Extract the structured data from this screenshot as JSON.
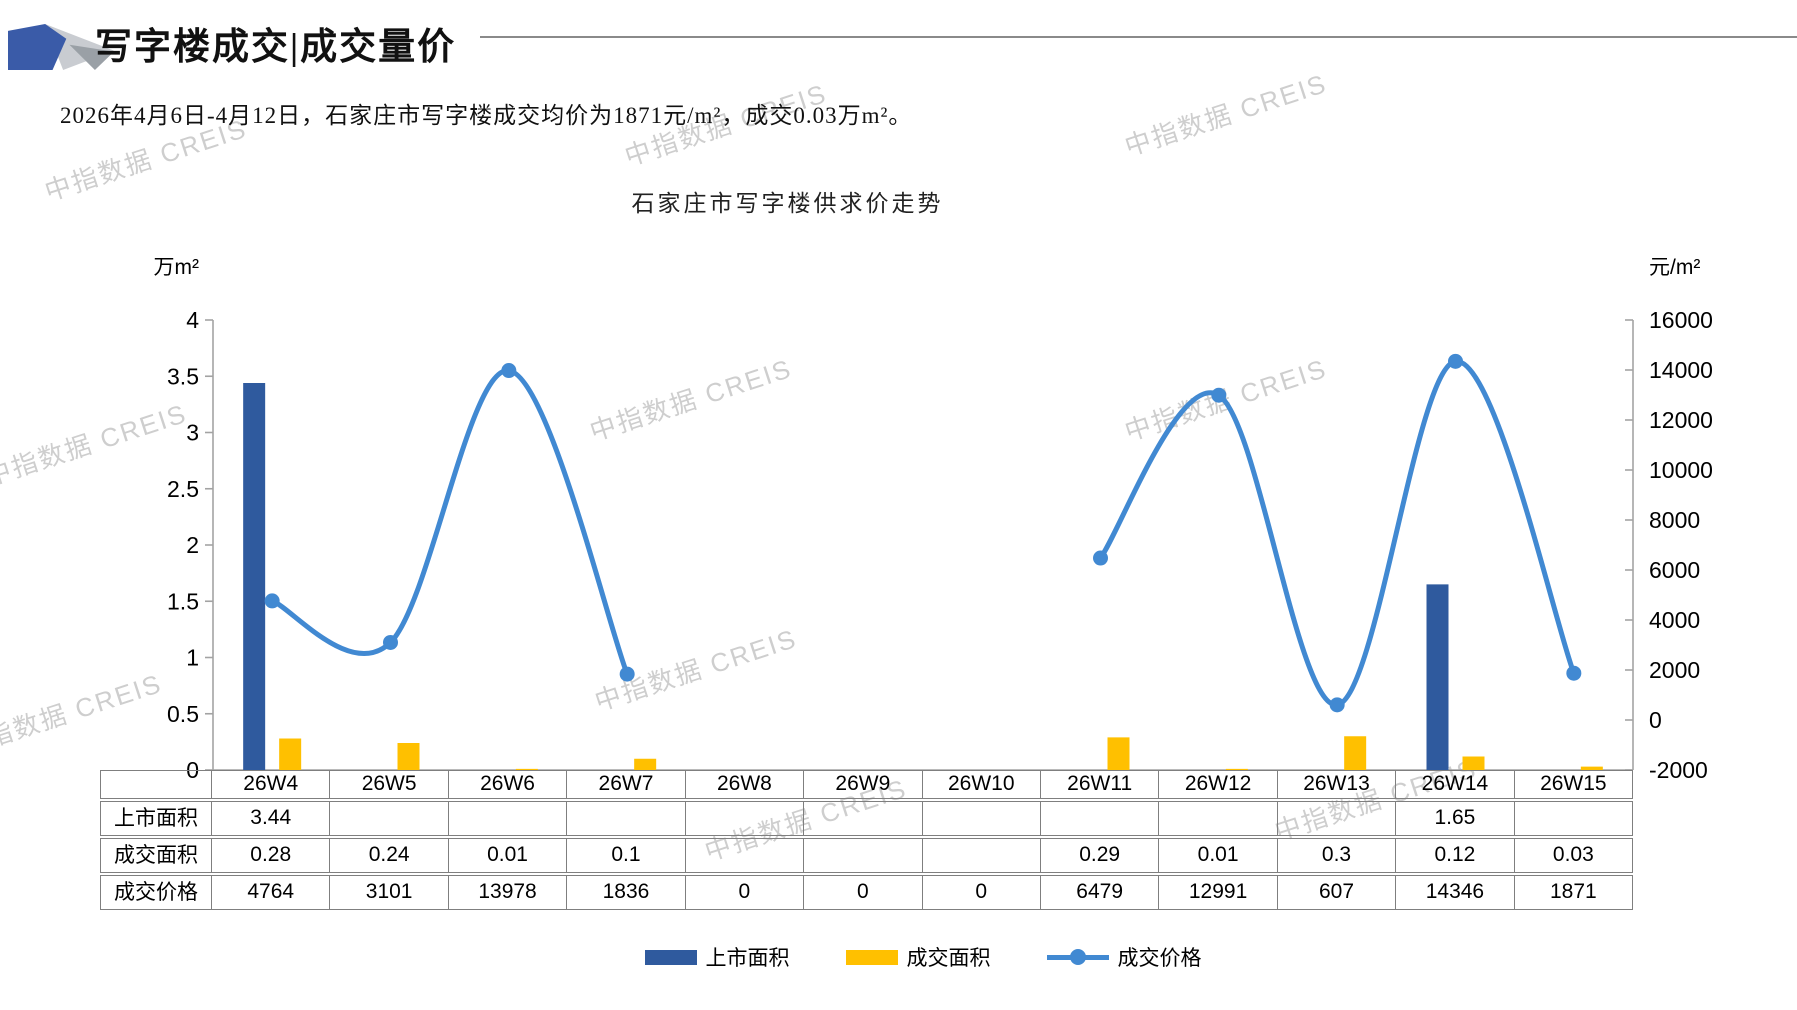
{
  "header": {
    "title": "写字楼成交|成交量价"
  },
  "intro": {
    "text": "2026年4月6日-4月12日，石家庄市写字楼成交均价为1871元/m²，成交0.03万m²。"
  },
  "watermark": {
    "text": "中指数据 CREIS"
  },
  "chart_data": {
    "type": "bar",
    "subtype": "combo-bar-line-dual-axis",
    "title": "石家庄市写字楼供求价走势",
    "categories": [
      "26W4",
      "26W5",
      "26W6",
      "26W7",
      "26W8",
      "26W9",
      "26W10",
      "26W11",
      "26W12",
      "26W13",
      "26W14",
      "26W15"
    ],
    "left_axis": {
      "label": "万m²",
      "min": 0,
      "max": 4,
      "step": 0.5,
      "ticks": [
        "4",
        "3.5",
        "3",
        "2.5",
        "2",
        "1.5",
        "1",
        "0.5",
        "0"
      ]
    },
    "right_axis": {
      "label": "元/m²",
      "min": -2000,
      "max": 16000,
      "step": 2000,
      "ticks": [
        "16000",
        "14000",
        "12000",
        "10000",
        "8000",
        "6000",
        "4000",
        "2000",
        "0",
        "-2000"
      ]
    },
    "series": [
      {
        "name": "上市面积",
        "kind": "bar",
        "axis": "left",
        "color": "#2f5a9e",
        "values": [
          3.44,
          null,
          null,
          null,
          null,
          null,
          null,
          null,
          null,
          null,
          1.65,
          null
        ]
      },
      {
        "name": "成交面积",
        "kind": "bar",
        "axis": "left",
        "color": "#ffc000",
        "values": [
          0.28,
          0.24,
          0.01,
          0.1,
          null,
          null,
          null,
          0.29,
          0.01,
          0.3,
          0.12,
          0.03
        ]
      },
      {
        "name": "成交价格",
        "kind": "line",
        "axis": "right",
        "color": "#4189d2",
        "values": [
          4764,
          3101,
          13978,
          1836,
          null,
          null,
          null,
          6479,
          12991,
          607,
          14346,
          1871
        ]
      }
    ],
    "grid": false,
    "legend_position": "bottom"
  },
  "table": {
    "corner": "",
    "columns": [
      "26W4",
      "26W5",
      "26W6",
      "26W7",
      "26W8",
      "26W9",
      "26W10",
      "26W11",
      "26W12",
      "26W13",
      "26W14",
      "26W15"
    ],
    "rows": [
      {
        "label": "上市面积",
        "cells": [
          "3.44",
          "",
          "",
          "",
          "",
          "",
          "",
          "",
          "",
          "",
          "1.65",
          ""
        ]
      },
      {
        "label": "成交面积",
        "cells": [
          "0.28",
          "0.24",
          "0.01",
          "0.1",
          "",
          "",
          "",
          "0.29",
          "0.01",
          "0.3",
          "0.12",
          "0.03"
        ]
      },
      {
        "label": "成交价格",
        "cells": [
          "4764",
          "3101",
          "13978",
          "1836",
          "0",
          "0",
          "0",
          "6479",
          "12991",
          "607",
          "14346",
          "1871"
        ]
      }
    ]
  },
  "legend": {
    "items": [
      {
        "label": "上市面积",
        "swatch": "bar",
        "color": "#2f5a9e"
      },
      {
        "label": "成交面积",
        "swatch": "bar",
        "color": "#ffc000"
      },
      {
        "label": "成交价格",
        "swatch": "line",
        "color": "#4189d2"
      }
    ]
  }
}
